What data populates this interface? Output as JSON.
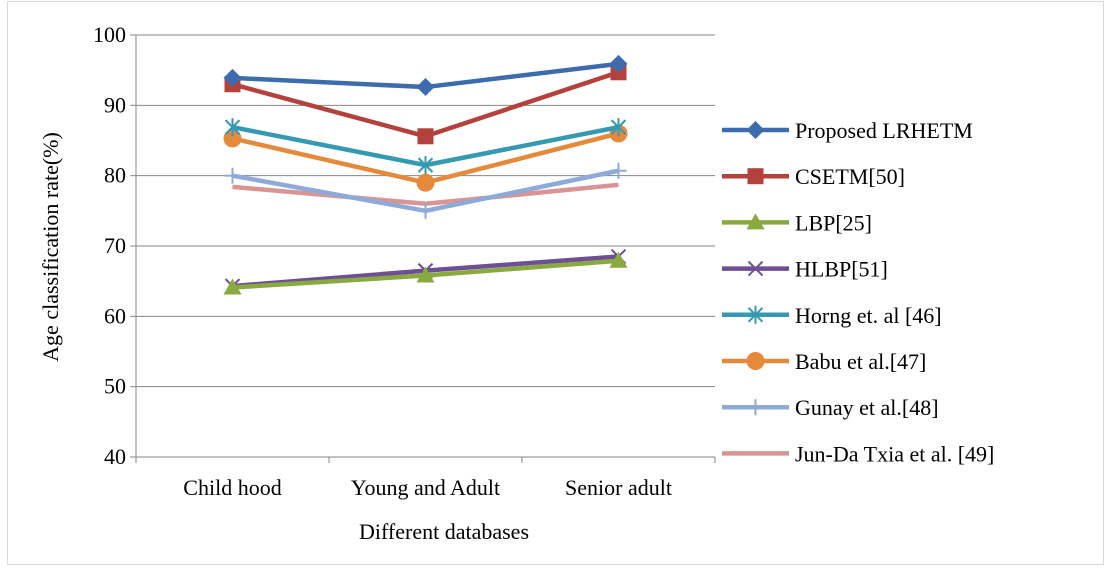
{
  "chart_data": {
    "type": "line",
    "title": "",
    "xlabel": "Different databases",
    "ylabel": "Age classification rate(%)",
    "ylim": [
      40,
      100
    ],
    "yticks": [
      40,
      50,
      60,
      70,
      80,
      90,
      100
    ],
    "grid": "horizontal",
    "legend_position": "right",
    "categories": [
      "Child hood",
      "Young and Adult",
      "Senior adult"
    ],
    "series": [
      {
        "name": "Proposed LRHETM",
        "values": [
          93.9,
          92.6,
          95.9
        ],
        "color": "#3c6cae",
        "marker": "diamond"
      },
      {
        "name": "CSETM[50]",
        "values": [
          93.0,
          85.6,
          94.7
        ],
        "color": "#b5413c",
        "marker": "square"
      },
      {
        "name": "LBP[25]",
        "values": [
          64.1,
          65.8,
          67.9
        ],
        "color": "#88aa3e",
        "marker": "triangle"
      },
      {
        "name": "HLBP[51]",
        "values": [
          64.3,
          66.5,
          68.5
        ],
        "color": "#6e4e94",
        "marker": "x"
      },
      {
        "name": "Horng et. al [46]",
        "values": [
          86.9,
          81.5,
          86.9
        ],
        "color": "#3599b2",
        "marker": "star"
      },
      {
        "name": "Babu et al.[47]",
        "values": [
          85.3,
          79.0,
          86.0
        ],
        "color": "#e5893b",
        "marker": "circle"
      },
      {
        "name": "Gunay et al.[48]",
        "values": [
          80.0,
          75.0,
          80.7
        ],
        "color": "#8eaad8",
        "marker": "plus"
      },
      {
        "name": "Jun-Da Txia et al. [49]",
        "values": [
          78.4,
          76.0,
          78.7
        ],
        "color": "#d99594",
        "marker": "none"
      }
    ]
  }
}
